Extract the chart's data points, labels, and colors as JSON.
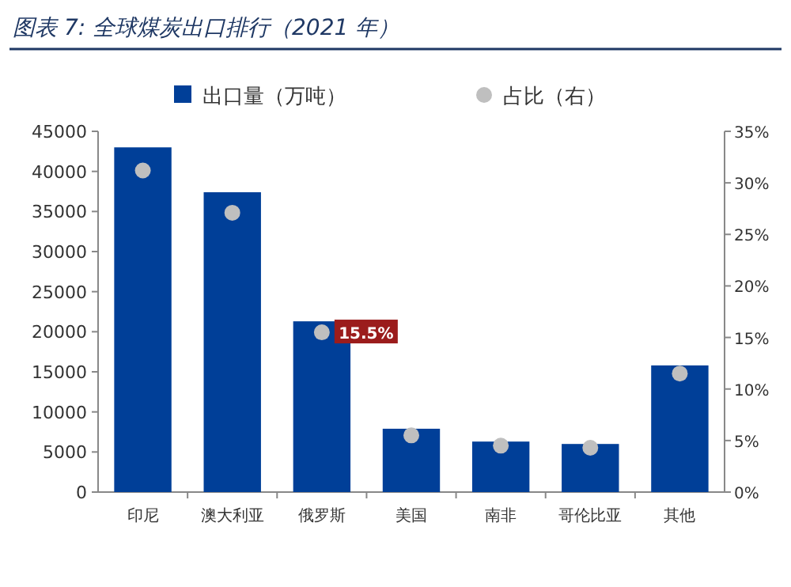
{
  "chart_data": {
    "type": "bar",
    "title": "图表 7: 全球煤炭出口排行（2021 年）",
    "categories": [
      "印尼",
      "澳大利亚",
      "俄罗斯",
      "美国",
      "南非",
      "哥伦比亚",
      "其他"
    ],
    "series": [
      {
        "name": "出口量（万吨）",
        "color": "#003f98",
        "values": [
          43000,
          37400,
          21300,
          7900,
          6300,
          6000,
          15800
        ]
      },
      {
        "name": "占比（右）",
        "type": "scatter",
        "axis": "y2",
        "color": "#bfbfbf",
        "marker": "circle",
        "values": [
          31.2,
          27.1,
          15.5,
          5.5,
          4.5,
          4.3,
          11.5
        ],
        "value_labels": [
          null,
          null,
          "15.5%",
          null,
          null,
          null,
          null
        ]
      }
    ],
    "ylim": [
      0,
      45000
    ],
    "yticks": [
      0,
      5000,
      10000,
      15000,
      20000,
      25000,
      30000,
      35000,
      40000,
      45000
    ],
    "y2lim": [
      0,
      35
    ],
    "y2ticks": [
      {
        "value": 0,
        "label": "0%"
      },
      {
        "value": 5,
        "label": "5%"
      },
      {
        "value": 10,
        "label": "10%"
      },
      {
        "value": 15,
        "label": "15%"
      },
      {
        "value": 20,
        "label": "20%"
      },
      {
        "value": 25,
        "label": "25%"
      },
      {
        "value": 30,
        "label": "30%"
      },
      {
        "value": 35,
        "label": "35%"
      }
    ],
    "legend": "top",
    "grid": false
  }
}
